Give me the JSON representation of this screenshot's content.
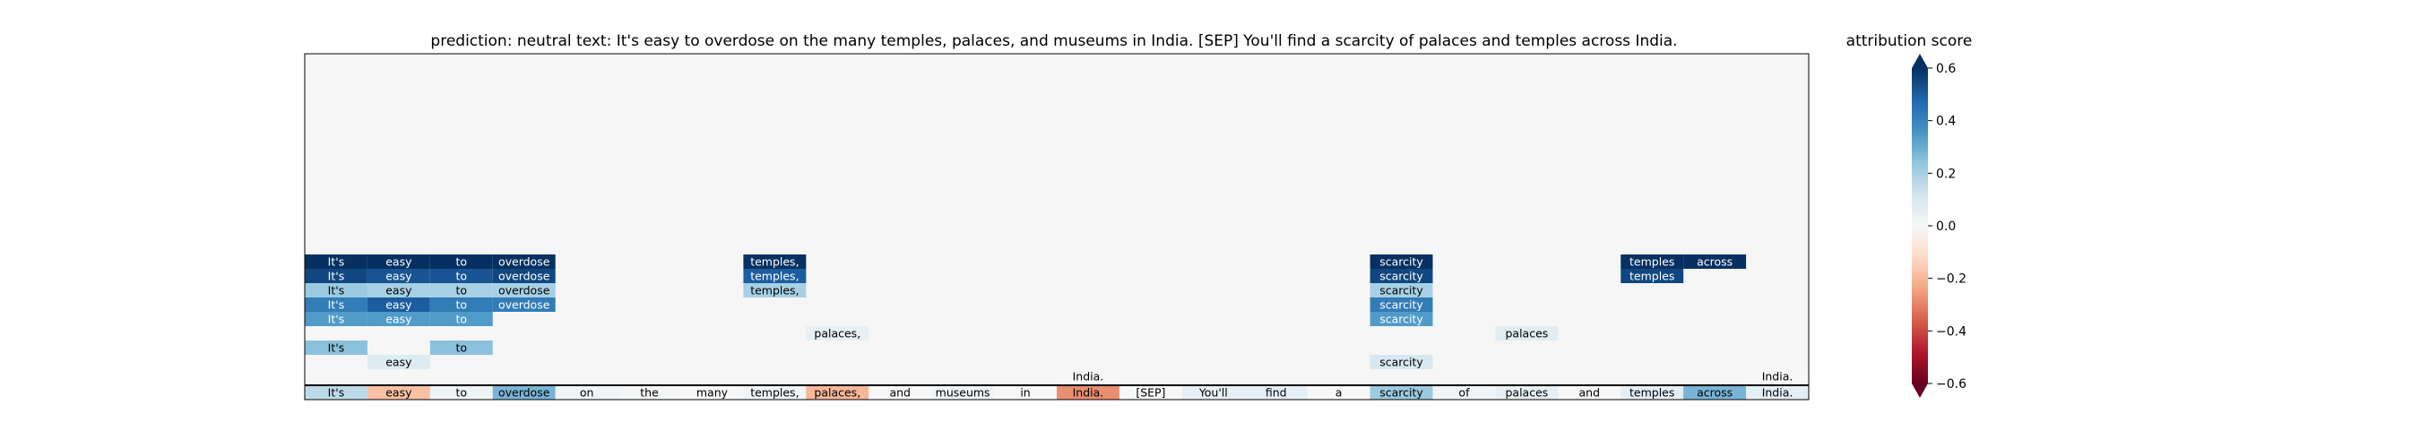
{
  "chart_data": {
    "type": "heatmap",
    "title": "prediction:  neutral     text:  It's easy to overdose on the many temples, palaces, and museums in India. [SEP] You'll find a scarcity of palaces and temples across India.",
    "colorbar": {
      "title": "attribution score",
      "vmin": -0.6,
      "vmax": 0.6,
      "ticks": [
        -0.6,
        -0.4,
        -0.2,
        0.0,
        0.2,
        0.4,
        0.6
      ],
      "tick_labels": [
        "−0.6",
        "−0.4",
        "−0.2",
        "0.0",
        "0.2",
        "0.4",
        "0.6"
      ],
      "colormap": "RdBu",
      "extend": "both"
    },
    "background_color": "#f5f6f5",
    "tokens": [
      "It's",
      "easy",
      "to",
      "overdose",
      "on",
      "the",
      "many",
      "temples,",
      "palaces,",
      "and",
      "museums",
      "in",
      "India.",
      "[SEP]",
      "You'll",
      "find",
      "a",
      "scarcity",
      "of",
      "palaces",
      "and",
      "temples",
      "across",
      "India."
    ],
    "bottom_row_scores": [
      0.16,
      -0.18,
      0.03,
      0.28,
      0.02,
      0.01,
      0.0,
      0.02,
      -0.2,
      0.0,
      0.02,
      0.0,
      -0.28,
      0.0,
      0.05,
      0.06,
      0.0,
      0.22,
      0.02,
      0.05,
      0.0,
      0.06,
      0.28,
      0.06
    ],
    "rows": [
      {
        "level": 1,
        "cells": [
          {
            "token": 0,
            "text": "It's",
            "score": 0.62
          },
          {
            "token": 1,
            "text": "easy",
            "score": 0.62
          },
          {
            "token": 2,
            "text": "to",
            "score": 0.62
          },
          {
            "token": 3,
            "text": "overdose",
            "score": 0.62
          },
          {
            "token": 7,
            "text": "temples,",
            "score": 0.62
          },
          {
            "token": 17,
            "text": "scarcity",
            "score": 0.62
          },
          {
            "token": 21,
            "text": "temples",
            "score": 0.62
          },
          {
            "token": 22,
            "text": "across",
            "score": 0.62
          }
        ]
      },
      {
        "level": 2,
        "cells": [
          {
            "token": 0,
            "text": "It's",
            "score": 0.55
          },
          {
            "token": 1,
            "text": "easy",
            "score": 0.52
          },
          {
            "token": 2,
            "text": "to",
            "score": 0.52
          },
          {
            "token": 3,
            "text": "overdose",
            "score": 0.55
          },
          {
            "token": 7,
            "text": "temples,",
            "score": 0.5
          },
          {
            "token": 17,
            "text": "scarcity",
            "score": 0.55
          },
          {
            "token": 21,
            "text": "temples",
            "score": 0.55
          }
        ]
      },
      {
        "level": 3,
        "cells": [
          {
            "token": 0,
            "text": "It's",
            "score": 0.22
          },
          {
            "token": 1,
            "text": "easy",
            "score": 0.2
          },
          {
            "token": 2,
            "text": "to",
            "score": 0.2
          },
          {
            "token": 3,
            "text": "overdose",
            "score": 0.2
          },
          {
            "token": 7,
            "text": "temples,",
            "score": 0.2
          },
          {
            "token": 17,
            "text": "scarcity",
            "score": 0.2
          }
        ]
      },
      {
        "level": 4,
        "cells": [
          {
            "token": 0,
            "text": "It's",
            "score": 0.42
          },
          {
            "token": 1,
            "text": "easy",
            "score": 0.5
          },
          {
            "token": 2,
            "text": "to",
            "score": 0.42
          },
          {
            "token": 3,
            "text": "overdose",
            "score": 0.42
          },
          {
            "token": 17,
            "text": "scarcity",
            "score": 0.42
          }
        ]
      },
      {
        "level": 5,
        "cells": [
          {
            "token": 0,
            "text": "It's",
            "score": 0.34
          },
          {
            "token": 1,
            "text": "easy",
            "score": 0.34
          },
          {
            "token": 2,
            "text": "to",
            "score": 0.34
          },
          {
            "token": 17,
            "text": "scarcity",
            "score": 0.34
          }
        ]
      },
      {
        "level": 6,
        "cells": [
          {
            "token": 8,
            "text": "palaces,",
            "score": 0.05
          },
          {
            "token": 19,
            "text": "palaces",
            "score": 0.07
          }
        ]
      },
      {
        "level": 7,
        "cells": [
          {
            "token": 0,
            "text": "It's",
            "score": 0.25
          },
          {
            "token": 2,
            "text": "to",
            "score": 0.25
          }
        ]
      },
      {
        "level": 8,
        "cells": [
          {
            "token": 1,
            "text": "easy",
            "score": 0.08
          },
          {
            "token": 17,
            "text": "scarcity",
            "score": 0.1
          }
        ]
      },
      {
        "level": 9,
        "cells": [
          {
            "token": 12,
            "text": "India.",
            "score": 0.0
          },
          {
            "token": 23,
            "text": "India.",
            "score": 0.0
          }
        ]
      }
    ]
  }
}
